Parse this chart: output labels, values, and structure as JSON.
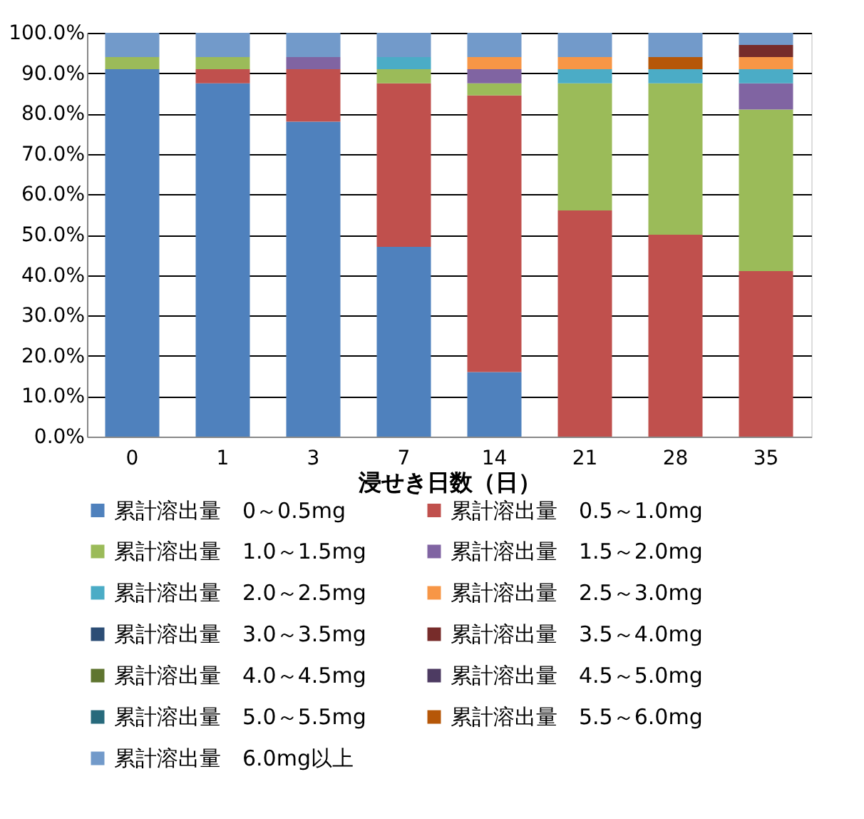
{
  "chart_data": {
    "type": "bar",
    "stacked": true,
    "xlabel": "浸せき日数（日）",
    "categories": [
      "0",
      "1",
      "3",
      "7",
      "14",
      "21",
      "28",
      "35"
    ],
    "series": [
      {
        "name": "累計溶出量　0～0.5mg",
        "color": "#4f81bd",
        "values": [
          91,
          87.5,
          78,
          47,
          16,
          null,
          null,
          null
        ]
      },
      {
        "name": "累計溶出量　0.5～1.0mg",
        "color": "#c0504d",
        "values": [
          null,
          3.5,
          13,
          40.5,
          68.5,
          56,
          50,
          41
        ]
      },
      {
        "name": "累計溶出量　1.0～1.5mg",
        "color": "#9bbb59",
        "values": [
          3,
          3,
          null,
          3.5,
          3,
          31.5,
          37.5,
          40
        ]
      },
      {
        "name": "累計溶出量　1.5～2.0mg",
        "color": "#8064a2",
        "values": [
          null,
          null,
          3,
          null,
          3.5,
          null,
          null,
          6.5
        ]
      },
      {
        "name": "累計溶出量　2.0～2.5mg",
        "color": "#4bacc6",
        "values": [
          null,
          null,
          null,
          3,
          null,
          3.5,
          3.5,
          3.5
        ]
      },
      {
        "name": "累計溶出量　2.5～3.0mg",
        "color": "#f79646",
        "values": [
          null,
          null,
          null,
          null,
          3,
          3,
          null,
          3
        ]
      },
      {
        "name": "累計溶出量　3.0～3.5mg",
        "color": "#2c4d75",
        "values": [
          null,
          null,
          null,
          null,
          null,
          null,
          null,
          null
        ]
      },
      {
        "name": "累計溶出量　3.5～4.0mg",
        "color": "#772c2a",
        "values": [
          null,
          null,
          null,
          null,
          null,
          null,
          null,
          3
        ]
      },
      {
        "name": "累計溶出量　4.0～4.5mg",
        "color": "#5f7530",
        "values": [
          null,
          null,
          null,
          null,
          null,
          null,
          null,
          null
        ]
      },
      {
        "name": "累計溶出量　4.5～5.0mg",
        "color": "#4d3b62",
        "values": [
          null,
          null,
          null,
          null,
          null,
          null,
          null,
          null
        ]
      },
      {
        "name": "累計溶出量　5.0～5.5mg",
        "color": "#276a7c",
        "values": [
          null,
          null,
          null,
          null,
          null,
          null,
          null,
          null
        ]
      },
      {
        "name": "累計溶出量　5.5～6.0mg",
        "color": "#b65708",
        "values": [
          null,
          null,
          null,
          null,
          null,
          null,
          3,
          null
        ]
      },
      {
        "name": "累計溶出量　6.0mg以上",
        "color": "#729aca",
        "values": [
          6,
          6,
          6,
          6,
          6,
          6,
          6,
          3
        ]
      }
    ],
    "ylim": [
      0,
      100
    ],
    "yticks": [
      {
        "value": 0,
        "label": "0.0%"
      },
      {
        "value": 10,
        "label": "10.0%"
      },
      {
        "value": 20,
        "label": "20.0%"
      },
      {
        "value": 30,
        "label": "30.0%"
      },
      {
        "value": 40,
        "label": "40.0%"
      },
      {
        "value": 50,
        "label": "50.0%"
      },
      {
        "value": 60,
        "label": "60.0%"
      },
      {
        "value": 70,
        "label": "70.0%"
      },
      {
        "value": 80,
        "label": "80.0%"
      },
      {
        "value": 90,
        "label": "90.0%"
      },
      {
        "value": 100,
        "label": "100.0%"
      }
    ],
    "grid": "y",
    "legend": "bottom"
  }
}
